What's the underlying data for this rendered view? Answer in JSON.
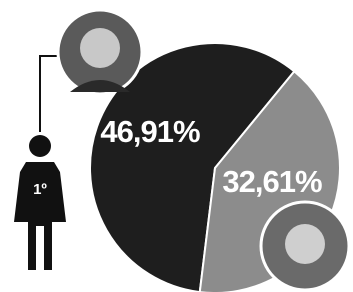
{
  "chart_data": {
    "type": "pie",
    "values": [
      46.91,
      32.61
    ],
    "value_labels": [
      "46,91%",
      "32,61%"
    ],
    "colors": [
      "#1e1e1e",
      "#8c8c8c"
    ],
    "annotations": [
      "1º"
    ]
  }
}
